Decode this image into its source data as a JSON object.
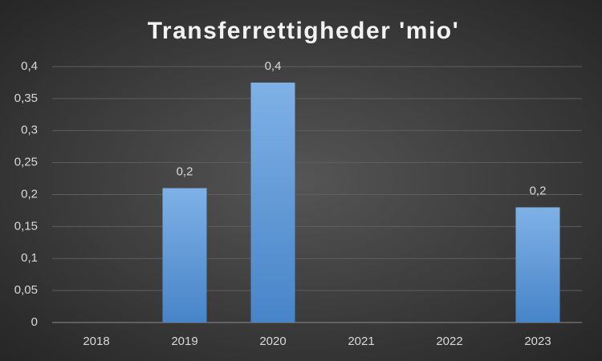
{
  "chart_data": {
    "type": "bar",
    "title": "Transferrettigheder 'mio'",
    "categories": [
      "2018",
      "2019",
      "2020",
      "2021",
      "2022",
      "2023"
    ],
    "values": [
      null,
      0.21,
      0.375,
      null,
      null,
      0.18
    ],
    "value_labels": [
      null,
      "0,2",
      "0,4",
      null,
      null,
      "0,2"
    ],
    "color": "#5b9bd5",
    "ylim": [
      0,
      0.4
    ],
    "yticks": [
      0,
      {
        "value": 0.05,
        "label": "0,05"
      },
      {
        "value": 0.1,
        "label": "0,1"
      },
      {
        "value": 0.15,
        "label": "0,15"
      },
      {
        "value": 0.2,
        "label": "0,2"
      },
      {
        "value": 0.25,
        "label": "0,25"
      },
      {
        "value": 0.3,
        "label": "0,3"
      },
      {
        "value": 0.35,
        "label": "0,35"
      },
      {
        "value": 0.4,
        "label": "0,4"
      }
    ],
    "grid": true
  }
}
